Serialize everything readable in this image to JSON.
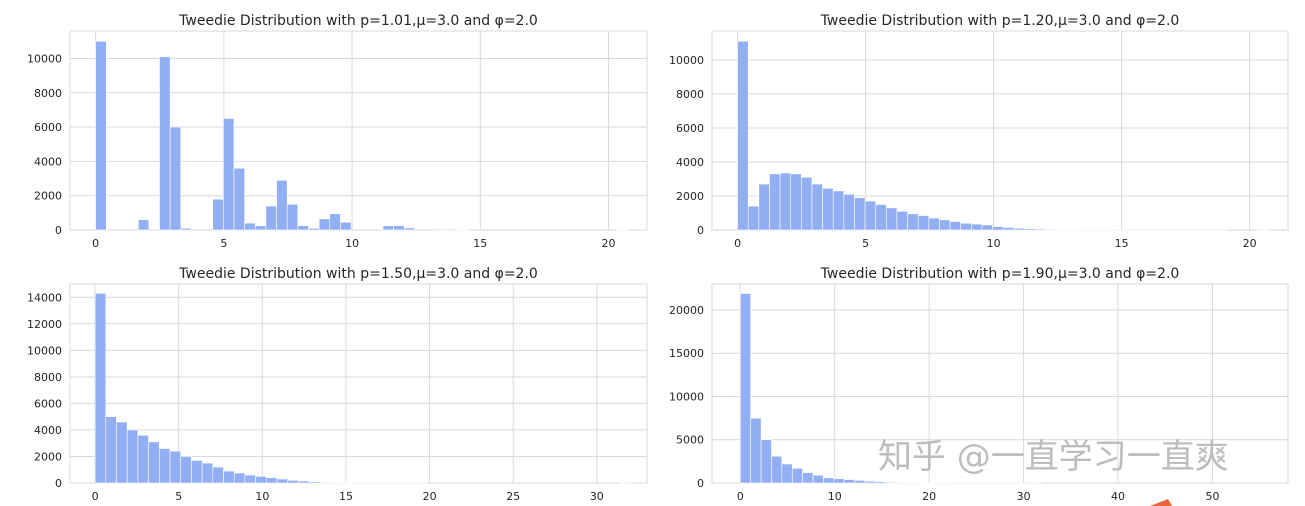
{
  "bar_color": "#92aff4",
  "grid_color": "#d9d9d9",
  "watermark": "知乎 @一直学习一直爽",
  "chart_data": [
    {
      "type": "bar",
      "title": "Tweedie Distribution with p=1.01,μ=3.0 and φ=2.0",
      "xlim": [
        -1,
        21.5
      ],
      "ylim": [
        0,
        11600
      ],
      "xticks": [
        0,
        5,
        10,
        15,
        20
      ],
      "yticks": [
        0,
        2000,
        4000,
        6000,
        8000,
        10000
      ],
      "bin_start": 0,
      "bin_width": 0.415,
      "values": [
        11000,
        0,
        0,
        0,
        600,
        0,
        10100,
        6000,
        100,
        0,
        0,
        1800,
        6500,
        3600,
        400,
        250,
        1400,
        2900,
        1500,
        250,
        100,
        650,
        950,
        450,
        0,
        0,
        0,
        250,
        250,
        120,
        0,
        0,
        50,
        50,
        30,
        0,
        0,
        0,
        0,
        0,
        0,
        0,
        0,
        0,
        0,
        0,
        0,
        0,
        0,
        10
      ]
    },
    {
      "type": "bar",
      "title": "Tweedie Distribution with p=1.20,μ=3.0 and φ=2.0",
      "xlim": [
        -1,
        21.5
      ],
      "ylim": [
        0,
        11700
      ],
      "xticks": [
        0,
        5,
        10,
        15,
        20
      ],
      "yticks": [
        0,
        2000,
        4000,
        6000,
        8000,
        10000
      ],
      "bin_start": 0,
      "bin_width": 0.415,
      "values": [
        11100,
        1400,
        2700,
        3300,
        3350,
        3300,
        3100,
        2700,
        2450,
        2300,
        2100,
        1900,
        1700,
        1500,
        1300,
        1100,
        950,
        850,
        700,
        600,
        500,
        400,
        350,
        300,
        200,
        150,
        100,
        80,
        60,
        40,
        30,
        20,
        15,
        10,
        8,
        5,
        4,
        3,
        2,
        2,
        1,
        1,
        1,
        1,
        1,
        1,
        0,
        0,
        0,
        1
      ]
    },
    {
      "type": "bar",
      "title": "Tweedie Distribution with p=1.50,μ=3.0 and φ=2.0",
      "xlim": [
        -1.5,
        33
      ],
      "ylim": [
        0,
        15000
      ],
      "xticks": [
        0,
        5,
        10,
        15,
        20,
        25,
        30
      ],
      "yticks": [
        0,
        2000,
        4000,
        6000,
        8000,
        10000,
        12000,
        14000
      ],
      "bin_start": 0,
      "bin_width": 0.64,
      "values": [
        14300,
        5000,
        4600,
        4000,
        3600,
        3100,
        2600,
        2400,
        2000,
        1700,
        1500,
        1200,
        900,
        750,
        600,
        500,
        400,
        300,
        200,
        150,
        100,
        60,
        40,
        20,
        10,
        5,
        3,
        2,
        1,
        1,
        1,
        0,
        0,
        0,
        0,
        0,
        0,
        0,
        0,
        0,
        0,
        0,
        0,
        0,
        0,
        0,
        0,
        0,
        0,
        1
      ]
    },
    {
      "type": "bar",
      "title": "Tweedie Distribution with p=1.90,μ=3.0 and φ=2.0",
      "xlim": [
        -3,
        58
      ],
      "ylim": [
        0,
        23000
      ],
      "xticks": [
        0,
        10,
        20,
        30,
        40,
        50
      ],
      "yticks": [
        0,
        5000,
        10000,
        15000,
        20000
      ],
      "bin_start": 0,
      "bin_width": 1.1,
      "values": [
        21900,
        7500,
        5000,
        3100,
        2200,
        1700,
        1200,
        900,
        600,
        500,
        400,
        300,
        200,
        150,
        100,
        80,
        60,
        40,
        30,
        20,
        15,
        10,
        8,
        5,
        3,
        2,
        1,
        1,
        1,
        0,
        0,
        0,
        0,
        0,
        0,
        0,
        0,
        0,
        0,
        0,
        0,
        0,
        0,
        0,
        0,
        0,
        0,
        0,
        0,
        0
      ]
    }
  ]
}
